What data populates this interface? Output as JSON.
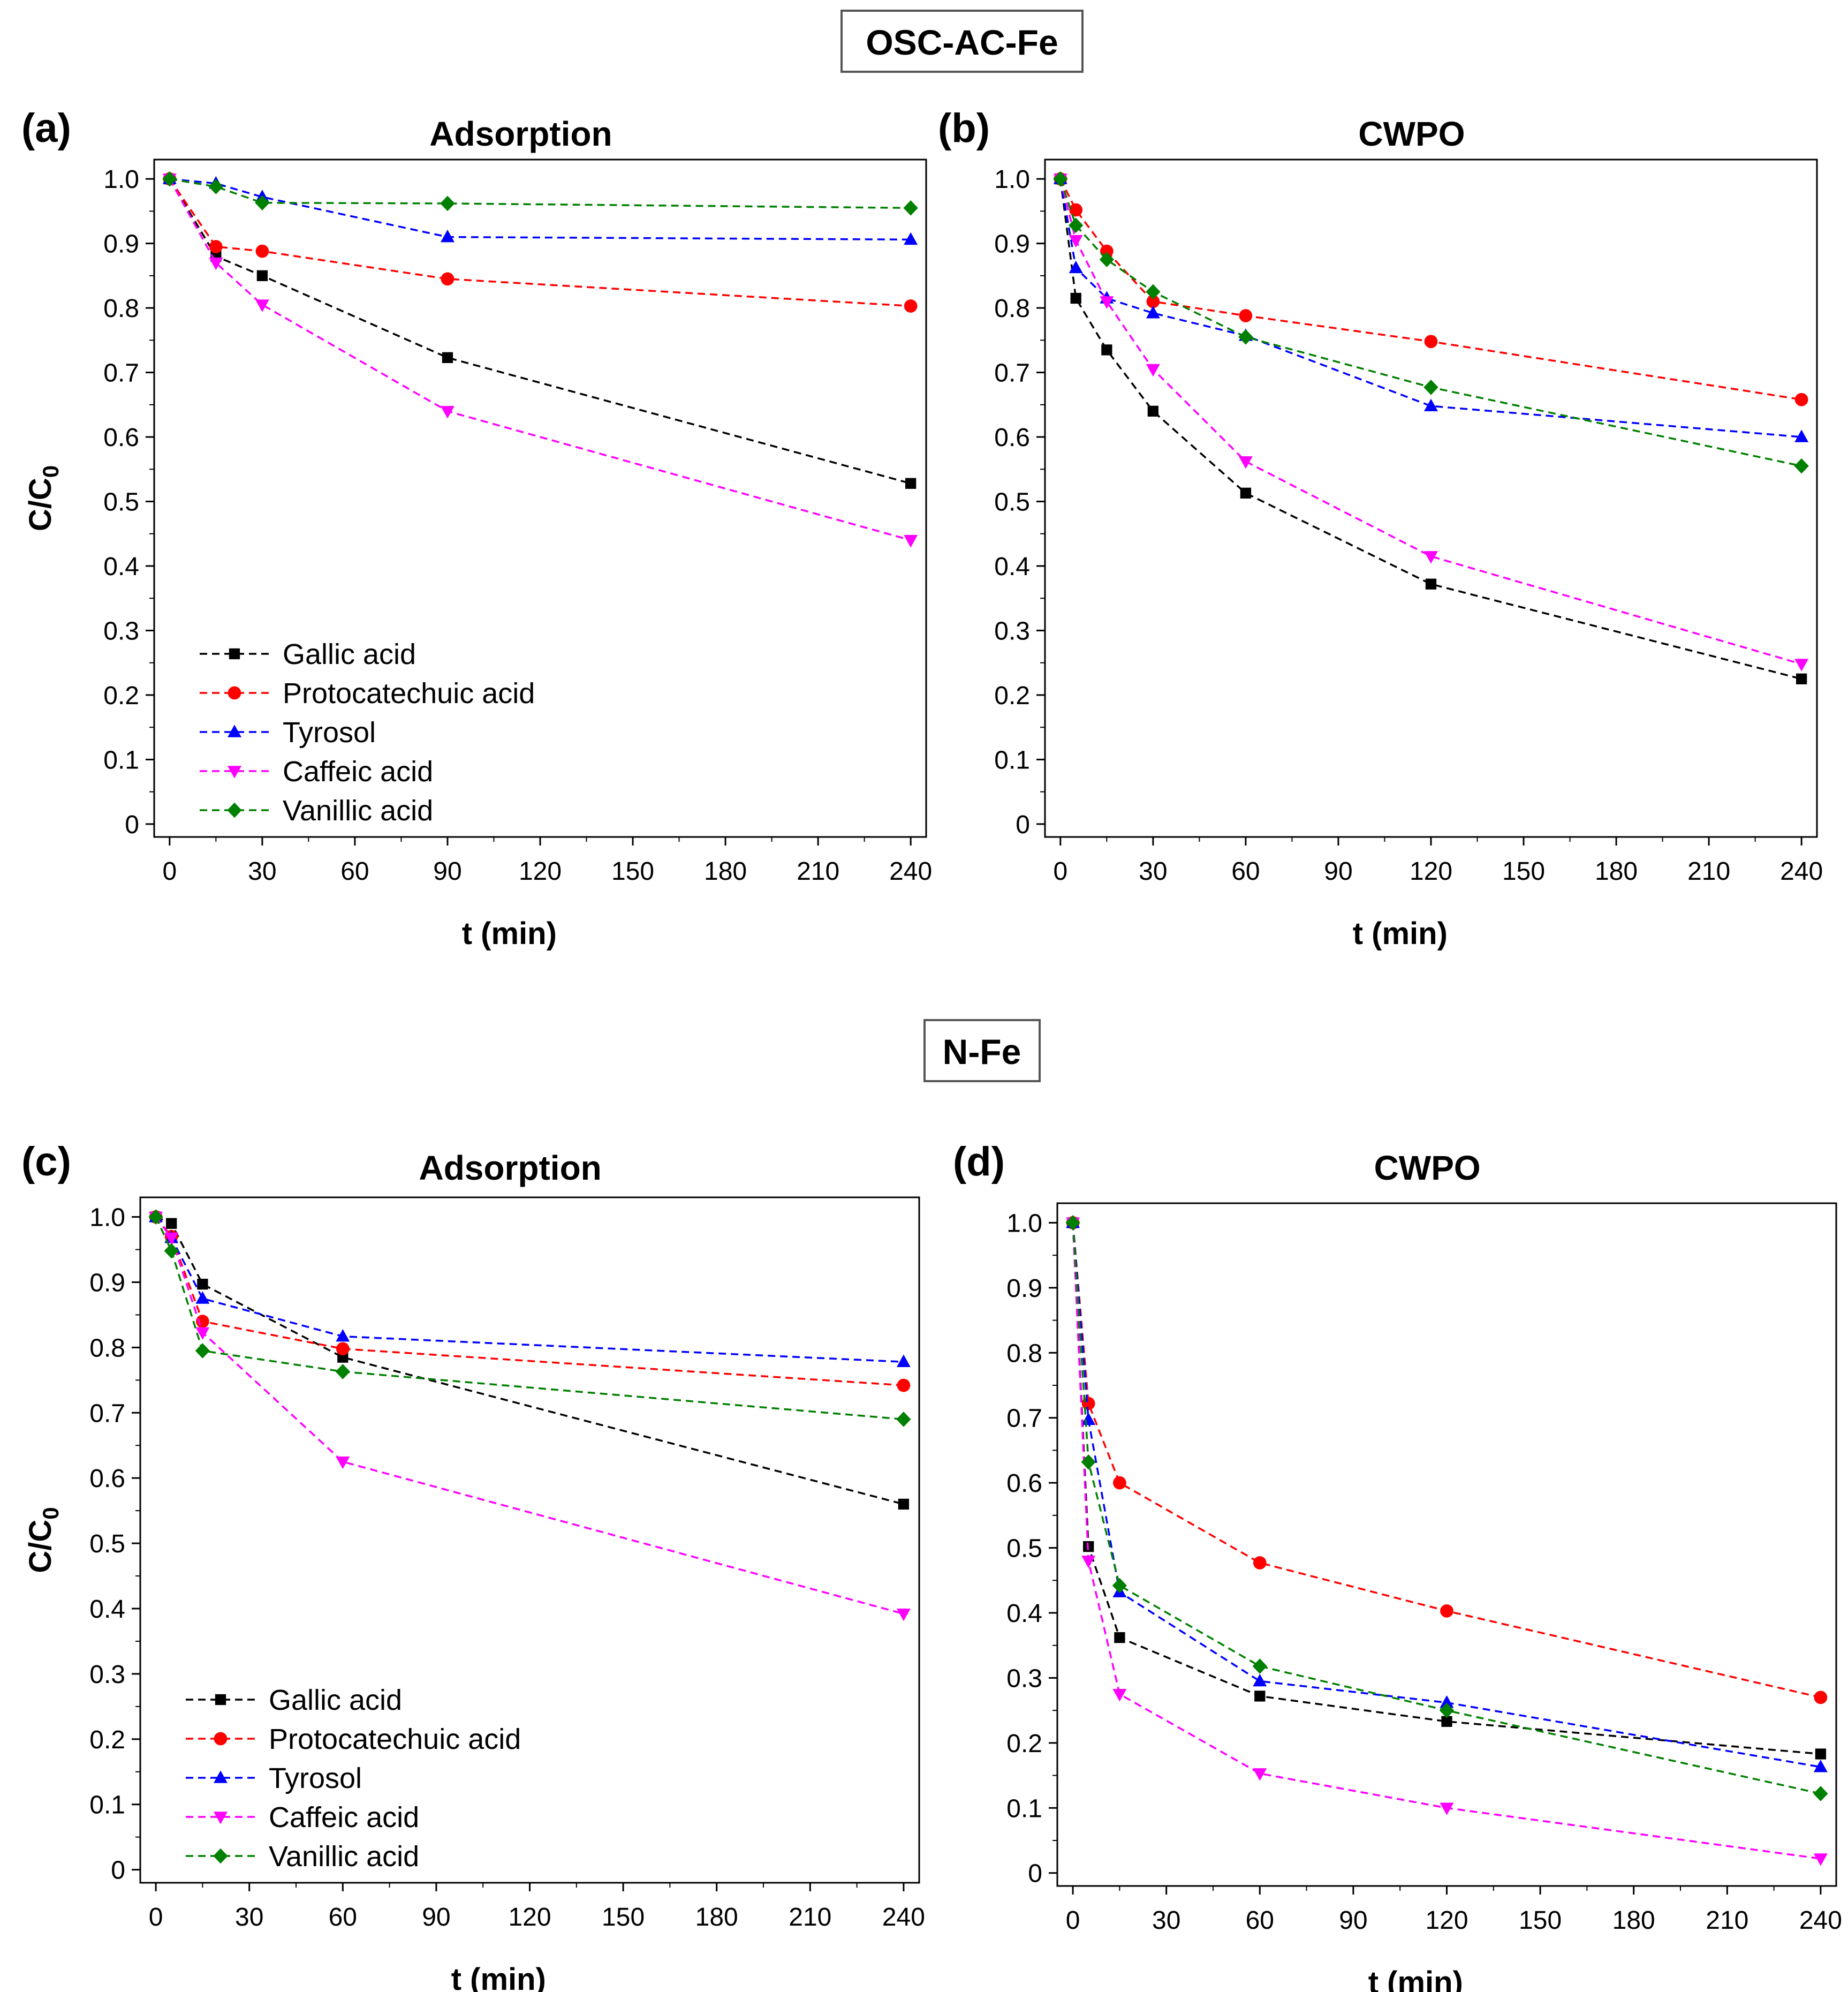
{
  "groups": [
    {
      "title": "OSC-AC-Fe"
    },
    {
      "title": "N-Fe"
    }
  ],
  "legend_labels": [
    "Gallic acid",
    "Protocatechuic acid",
    "Tyrosol",
    "Caffeic acid",
    "Vanillic acid"
  ],
  "series_styles": [
    {
      "name": "Gallic acid",
      "color": "#000000",
      "marker": "square"
    },
    {
      "name": "Protocatechuic acid",
      "color": "#ff0000",
      "marker": "circle"
    },
    {
      "name": "Tyrosol",
      "color": "#0000ff",
      "marker": "triangle-up"
    },
    {
      "name": "Caffeic acid",
      "color": "#ff00ff",
      "marker": "triangle-down"
    },
    {
      "name": "Vanillic acid",
      "color": "#008000",
      "marker": "diamond"
    }
  ],
  "chart_data": [
    {
      "panel": "(a)",
      "group": "OSC-AC-Fe",
      "type": "line",
      "title": "Adsorption",
      "xlabel": "t (min)",
      "ylabel": "C/C0",
      "xlim": [
        -5,
        245
      ],
      "ylim": [
        -0.02,
        1.03
      ],
      "xticks": [
        0,
        30,
        60,
        90,
        120,
        150,
        180,
        210,
        240
      ],
      "yticks": [
        "0",
        "0.1",
        "0.2",
        "0.3",
        "0.4",
        "0.5",
        "0.6",
        "0.7",
        "0.8",
        "0.9",
        "1.0"
      ],
      "legend_position": "bottom-left",
      "series": [
        {
          "name": "Gallic acid",
          "x": [
            0,
            15,
            30,
            90,
            240
          ],
          "y": [
            1.0,
            0.88,
            0.85,
            0.723,
            0.528
          ]
        },
        {
          "name": "Protocatechuic acid",
          "x": [
            0,
            15,
            30,
            90,
            240
          ],
          "y": [
            1.0,
            0.895,
            0.888,
            0.845,
            0.803
          ]
        },
        {
          "name": "Tyrosol",
          "x": [
            0,
            15,
            30,
            90,
            240
          ],
          "y": [
            1.0,
            0.993,
            0.972,
            0.91,
            0.906
          ]
        },
        {
          "name": "Caffeic acid",
          "x": [
            0,
            15,
            30,
            90,
            240
          ],
          "y": [
            1.0,
            0.87,
            0.805,
            0.64,
            0.44
          ]
        },
        {
          "name": "Vanillic acid",
          "x": [
            0,
            15,
            30,
            90,
            240
          ],
          "y": [
            1.0,
            0.988,
            0.963,
            0.962,
            0.955
          ]
        }
      ]
    },
    {
      "panel": "(b)",
      "group": "OSC-AC-Fe",
      "type": "line",
      "title": "CWPO",
      "xlabel": "t (min)",
      "ylabel": "",
      "xlim": [
        -5,
        245
      ],
      "ylim": [
        -0.02,
        1.03
      ],
      "xticks": [
        0,
        30,
        60,
        90,
        120,
        150,
        180,
        210,
        240
      ],
      "yticks": [
        "0",
        "0.1",
        "0.2",
        "0.3",
        "0.4",
        "0.5",
        "0.6",
        "0.7",
        "0.8",
        "0.9",
        "1.0"
      ],
      "legend_position": "none",
      "series": [
        {
          "name": "Gallic acid",
          "x": [
            0,
            5,
            15,
            30,
            60,
            120,
            240
          ],
          "y": [
            1.0,
            0.815,
            0.735,
            0.64,
            0.513,
            0.372,
            0.225
          ]
        },
        {
          "name": "Protocatechuic acid",
          "x": [
            0,
            5,
            15,
            30,
            60,
            120,
            240
          ],
          "y": [
            1.0,
            0.952,
            0.888,
            0.81,
            0.788,
            0.748,
            0.658
          ]
        },
        {
          "name": "Tyrosol",
          "x": [
            0,
            5,
            15,
            30,
            60,
            120,
            240
          ],
          "y": [
            1.0,
            0.862,
            0.815,
            0.792,
            0.757,
            0.648,
            0.6
          ]
        },
        {
          "name": "Caffeic acid",
          "x": [
            0,
            5,
            15,
            30,
            60,
            120,
            240
          ],
          "y": [
            1.0,
            0.905,
            0.81,
            0.705,
            0.562,
            0.415,
            0.248
          ]
        },
        {
          "name": "Vanillic acid",
          "x": [
            0,
            5,
            15,
            30,
            60,
            120,
            240
          ],
          "y": [
            1.0,
            0.928,
            0.875,
            0.825,
            0.755,
            0.677,
            0.555
          ]
        }
      ]
    },
    {
      "panel": "(c)",
      "group": "N-Fe",
      "type": "line",
      "title": "Adsorption",
      "xlabel": "t (min)",
      "ylabel": "C/C0",
      "xlim": [
        -5,
        245
      ],
      "ylim": [
        -0.02,
        1.03
      ],
      "xticks": [
        0,
        30,
        60,
        90,
        120,
        150,
        180,
        210,
        240
      ],
      "yticks": [
        "0",
        "0.1",
        "0.2",
        "0.3",
        "0.4",
        "0.5",
        "0.6",
        "0.7",
        "0.8",
        "0.9",
        "1.0"
      ],
      "legend_position": "bottom-left",
      "series": [
        {
          "name": "Gallic acid",
          "x": [
            0,
            5,
            15,
            60,
            240
          ],
          "y": [
            1.0,
            0.99,
            0.897,
            0.785,
            0.56
          ]
        },
        {
          "name": "Protocatechuic acid",
          "x": [
            0,
            5,
            15,
            60,
            240
          ],
          "y": [
            1.0,
            0.97,
            0.84,
            0.798,
            0.742
          ]
        },
        {
          "name": "Tyrosol",
          "x": [
            0,
            5,
            15,
            60,
            240
          ],
          "y": [
            1.0,
            0.968,
            0.875,
            0.817,
            0.778
          ]
        },
        {
          "name": "Caffeic acid",
          "x": [
            0,
            5,
            15,
            60,
            240
          ],
          "y": [
            1.0,
            0.968,
            0.823,
            0.625,
            0.392
          ]
        },
        {
          "name": "Vanillic acid",
          "x": [
            0,
            5,
            15,
            60,
            240
          ],
          "y": [
            1.0,
            0.948,
            0.795,
            0.763,
            0.69
          ]
        }
      ]
    },
    {
      "panel": "(d)",
      "group": "N-Fe",
      "type": "line",
      "title": "CWPO",
      "xlabel": "t (min)",
      "ylabel": "",
      "xlim": [
        -5,
        245
      ],
      "ylim": [
        -0.02,
        1.03
      ],
      "xticks": [
        0,
        30,
        60,
        90,
        120,
        150,
        180,
        210,
        240
      ],
      "yticks": [
        "0",
        "0.1",
        "0.2",
        "0.3",
        "0.4",
        "0.5",
        "0.6",
        "0.7",
        "0.8",
        "0.9",
        "1.0"
      ],
      "legend_position": "none",
      "series": [
        {
          "name": "Gallic acid",
          "x": [
            0,
            5,
            15,
            60,
            120,
            240
          ],
          "y": [
            1.0,
            0.502,
            0.362,
            0.272,
            0.233,
            0.183
          ]
        },
        {
          "name": "Protocatechuic acid",
          "x": [
            0,
            5,
            15,
            60,
            120,
            240
          ],
          "y": [
            1.0,
            0.722,
            0.6,
            0.477,
            0.403,
            0.27
          ]
        },
        {
          "name": "Tyrosol",
          "x": [
            0,
            5,
            15,
            60,
            120,
            240
          ],
          "y": [
            1.0,
            0.697,
            0.432,
            0.295,
            0.262,
            0.163
          ]
        },
        {
          "name": "Caffeic acid",
          "x": [
            0,
            5,
            15,
            60,
            120,
            240
          ],
          "y": [
            1.0,
            0.48,
            0.275,
            0.153,
            0.1,
            0.022
          ]
        },
        {
          "name": "Vanillic acid",
          "x": [
            0,
            5,
            15,
            60,
            120,
            240
          ],
          "y": [
            1.0,
            0.632,
            0.442,
            0.318,
            0.25,
            0.122
          ]
        }
      ]
    }
  ]
}
